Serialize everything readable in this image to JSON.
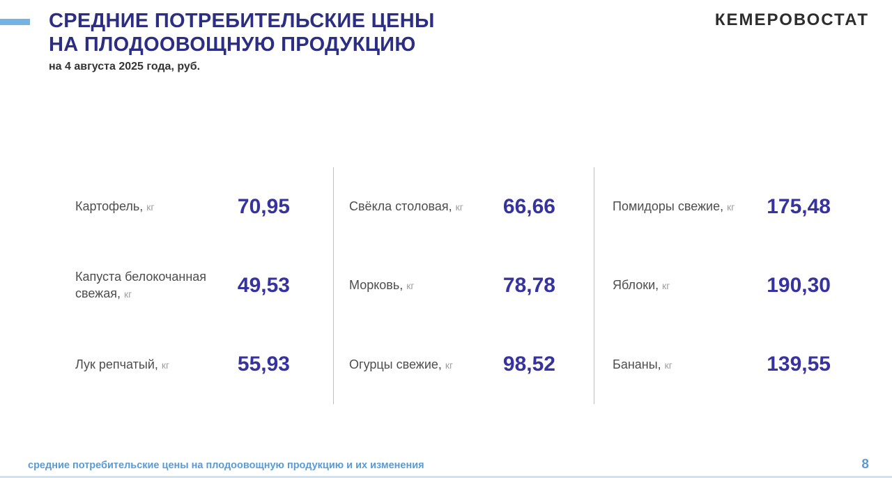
{
  "header": {
    "title_line1": "СРЕДНИЕ ПОТРЕБИТЕЛЬСКИЕ ЦЕНЫ",
    "title_line2": "НА ПЛОДООВОЩНУЮ ПРОДУКЦИЮ",
    "subtitle": "на 4 августа 2025 года, руб.",
    "logo": "КЕМЕРОВОСТАТ"
  },
  "grid": {
    "columns": [
      {
        "items": [
          {
            "label": "Картофель,",
            "unit": "кг",
            "price": "70,95"
          },
          {
            "label": "Капуста белокочанная свежая,",
            "unit": "кг",
            "price": "49,53"
          },
          {
            "label": "Лук репчатый,",
            "unit": "кг",
            "price": "55,93"
          }
        ]
      },
      {
        "items": [
          {
            "label": "Свёкла столовая,",
            "unit": "кг",
            "price": "66,66"
          },
          {
            "label": "Морковь,",
            "unit": "кг",
            "price": "78,78"
          },
          {
            "label": "Огурцы свежие,",
            "unit": "кг",
            "price": "98,52"
          }
        ]
      },
      {
        "items": [
          {
            "label": "Помидоры свежие,",
            "unit": "кг",
            "price": "175,48"
          },
          {
            "label": "Яблоки,",
            "unit": "кг",
            "price": "190,30"
          },
          {
            "label": "Бананы,",
            "unit": "кг",
            "price": "139,55"
          }
        ]
      }
    ]
  },
  "footer": {
    "caption": "средние потребительские цены на плодоовощную продукцию и их изменения",
    "page_number": "8"
  },
  "colors": {
    "title_navy": "#2b2e83",
    "price_indigo": "#3633a0",
    "accent_dash_blue": "#74b2e2",
    "footer_blue": "#5b9bd5",
    "divider_gray": "#bfbfbf",
    "label_gray": "#4d4d4d",
    "unit_gray": "#9e9e9e"
  },
  "chart_data": {
    "type": "table",
    "title": "СРЕДНИЕ ПОТРЕБИТЕЛЬСКИЕ ЦЕНЫ НА ПЛОДООВОЩНУЮ ПРОДУКЦИЮ",
    "subtitle": "на 4 августа 2025 года, руб.",
    "unit": "руб. за кг",
    "categories": [
      "Картофель",
      "Капуста белокочанная свежая",
      "Лук репчатый",
      "Свёкла столовая",
      "Морковь",
      "Огурцы свежие",
      "Помидоры свежие",
      "Яблоки",
      "Бананы"
    ],
    "values": [
      70.95,
      49.53,
      55.93,
      66.66,
      78.78,
      98.52,
      175.48,
      190.3,
      139.55
    ],
    "layout": "3 columns x 3 rows, vertical gray dividers between columns"
  }
}
